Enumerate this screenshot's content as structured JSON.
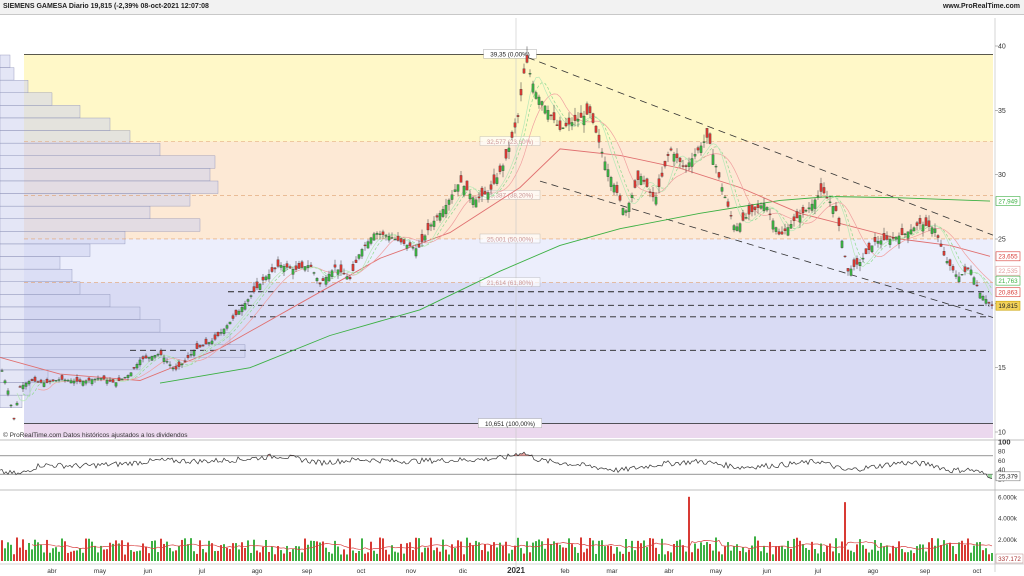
{
  "header": {
    "title": "SIEMENS GAMESA Diario 19,815 (-2,39% 08-oct-2021 12:07:08",
    "website": "www.ProRealTime.com"
  },
  "footer_note": "© ProRealTime.com  Datos históricos ajustados a los dividendos",
  "colors": {
    "up": "#3cb043",
    "down": "#d83a34",
    "sma_long": "#3cb043",
    "sma_mid": "#e07070",
    "fib_yellow": "#fff8c8",
    "fib_orange": "#fde9d5",
    "fib_blue": "#e4e6fa",
    "fib_violet": "#d9dbf4",
    "fib_pink": "#ebd8ee",
    "rsi": "#333333",
    "volume_avg": "#d84040"
  },
  "chart_data": [
    {
      "type": "candlestick",
      "name": "price",
      "ylim": [
        10,
        40
      ],
      "y_ticks": [
        "40",
        "35",
        "30",
        "25",
        "20",
        "15",
        "10"
      ],
      "x_ticks": [
        "abr",
        "may",
        "jun",
        "jul",
        "ago",
        "sep",
        "oct",
        "nov",
        "dic",
        "2021",
        "feb",
        "mar",
        "abr",
        "may",
        "jun",
        "jul",
        "ago",
        "sep",
        "oct"
      ],
      "fibonacci": [
        {
          "price": 39.35,
          "label": "39,35 (0,00%)"
        },
        {
          "price": 32.577,
          "label": "32,577 (23,60%)"
        },
        {
          "price": 28.387,
          "label": "28,387 (38,20%)"
        },
        {
          "price": 25.001,
          "label": "25,001 (50,00%)"
        },
        {
          "price": 21.614,
          "label": "21,614 (61,80%)"
        },
        {
          "price": 10.651,
          "label": "10,651 (100,00%)"
        }
      ],
      "horizontal_levels": [
        20.9,
        19.85,
        18.95,
        16.35
      ],
      "price_path": [
        [
          0,
          15.3
        ],
        [
          8,
          13.2
        ],
        [
          14,
          11.0
        ],
        [
          20,
          13.5
        ],
        [
          30,
          14.0
        ],
        [
          45,
          13.8
        ],
        [
          60,
          14.1
        ],
        [
          80,
          13.9
        ],
        [
          100,
          14.2
        ],
        [
          115,
          13.8
        ],
        [
          130,
          14.5
        ],
        [
          140,
          15.6
        ],
        [
          160,
          16.1
        ],
        [
          175,
          14.8
        ],
        [
          185,
          15.5
        ],
        [
          195,
          16.4
        ],
        [
          215,
          17.2
        ],
        [
          235,
          19.0
        ],
        [
          250,
          20.5
        ],
        [
          265,
          22.0
        ],
        [
          280,
          23.0
        ],
        [
          295,
          22.6
        ],
        [
          310,
          23.0
        ],
        [
          320,
          21.5
        ],
        [
          335,
          22.8
        ],
        [
          350,
          21.9
        ],
        [
          360,
          24.0
        ],
        [
          375,
          25.5
        ],
        [
          390,
          25.2
        ],
        [
          405,
          24.6
        ],
        [
          418,
          24.2
        ],
        [
          430,
          26.0
        ],
        [
          445,
          27.5
        ],
        [
          460,
          29.5
        ],
        [
          475,
          28.0
        ],
        [
          490,
          28.7
        ],
        [
          505,
          31.0
        ],
        [
          518,
          34.5
        ],
        [
          526,
          39.0
        ],
        [
          535,
          36.5
        ],
        [
          548,
          35.0
        ],
        [
          560,
          33.5
        ],
        [
          575,
          34.2
        ],
        [
          590,
          34.8
        ],
        [
          605,
          31.0
        ],
        [
          615,
          29.0
        ],
        [
          625,
          27.0
        ],
        [
          640,
          30.0
        ],
        [
          655,
          28.0
        ],
        [
          670,
          32.0
        ],
        [
          685,
          30.5
        ],
        [
          697,
          31.8
        ],
        [
          708,
          33.0
        ],
        [
          720,
          29.5
        ],
        [
          735,
          25.8
        ],
        [
          750,
          27.0
        ],
        [
          765,
          27.8
        ],
        [
          780,
          25.2
        ],
        [
          795,
          26.5
        ],
        [
          810,
          27.5
        ],
        [
          822,
          28.8
        ],
        [
          836,
          27.2
        ],
        [
          848,
          22.5
        ],
        [
          860,
          23.2
        ],
        [
          875,
          24.8
        ],
        [
          890,
          25.0
        ],
        [
          905,
          25.4
        ],
        [
          920,
          26.2
        ],
        [
          935,
          25.8
        ],
        [
          945,
          23.5
        ],
        [
          958,
          22.0
        ],
        [
          970,
          22.8
        ],
        [
          980,
          20.8
        ],
        [
          992,
          19.815
        ]
      ],
      "overlay_lines": [
        {
          "name": "",
          "values": [
            [
              160,
              13.8
            ],
            [
              250,
              15.0
            ],
            [
              330,
              17.5
            ],
            [
              420,
              19.5
            ],
            [
              500,
              22.5
            ],
            [
              560,
              24.5
            ],
            [
              620,
              25.8
            ],
            [
              700,
              27.0
            ],
            [
              780,
              28.0
            ],
            [
              830,
              28.3
            ],
            [
              900,
              28.2
            ],
            [
              990,
              27.949
            ]
          ]
        },
        {
          "name": "",
          "values": [
            [
              0,
              15.8
            ],
            [
              60,
              14.5
            ],
            [
              140,
              14.0
            ],
            [
              220,
              16.5
            ],
            [
              300,
              20.0
            ],
            [
              380,
              23.5
            ],
            [
              450,
              25.5
            ],
            [
              520,
              29.0
            ],
            [
              560,
              32.0
            ],
            [
              620,
              31.5
            ],
            [
              680,
              30.5
            ],
            [
              740,
              29.0
            ],
            [
              800,
              27.0
            ],
            [
              850,
              26.0
            ],
            [
              900,
              25.0
            ],
            [
              950,
              24.5
            ],
            [
              990,
              23.655
            ]
          ]
        }
      ],
      "right_labels": [
        {
          "price": 27.949,
          "label": "27,949",
          "color": "#3cb043"
        },
        {
          "price": 23.655,
          "label": "23,655",
          "color": "#d83a34"
        },
        {
          "price": 22.535,
          "label": "22,535",
          "color": "#e39a9a"
        },
        {
          "price": 21.763,
          "label": "21,763",
          "color": "#3cb043"
        },
        {
          "price": 20.863,
          "label": "20,863",
          "color": "#d83a34"
        },
        {
          "price": 19.815,
          "label": "19,815",
          "color": "#c9a100"
        }
      ]
    },
    {
      "type": "line",
      "name": "rsi",
      "ylim": [
        0,
        100
      ],
      "y_ticks": [
        "100",
        "80",
        "60",
        "40",
        "20"
      ],
      "levels": [
        70,
        30
      ],
      "last_value": "25,379",
      "path": [
        [
          0,
          35
        ],
        [
          20,
          30
        ],
        [
          40,
          50
        ],
        [
          80,
          48
        ],
        [
          120,
          52
        ],
        [
          160,
          60
        ],
        [
          200,
          58
        ],
        [
          240,
          62
        ],
        [
          280,
          70
        ],
        [
          320,
          55
        ],
        [
          360,
          62
        ],
        [
          400,
          58
        ],
        [
          440,
          60
        ],
        [
          480,
          62
        ],
        [
          505,
          66
        ],
        [
          522,
          78
        ],
        [
          540,
          60
        ],
        [
          580,
          50
        ],
        [
          620,
          38
        ],
        [
          660,
          52
        ],
        [
          700,
          58
        ],
        [
          740,
          45
        ],
        [
          780,
          50
        ],
        [
          820,
          58
        ],
        [
          845,
          38
        ],
        [
          870,
          45
        ],
        [
          900,
          55
        ],
        [
          930,
          52
        ],
        [
          950,
          38
        ],
        [
          970,
          40
        ],
        [
          992,
          25.379
        ]
      ]
    },
    {
      "type": "bar",
      "name": "volume",
      "y_ticks": [
        "6.000k",
        "4.000k",
        "2.000k"
      ],
      "last_value": "337.172",
      "spikes": [
        [
          690,
          6.0
        ],
        [
          845,
          5.5
        ],
        [
          305,
          2.1
        ],
        [
          580,
          2.2
        ],
        [
          755,
          2.3
        ],
        [
          400,
          1.6
        ]
      ]
    }
  ]
}
